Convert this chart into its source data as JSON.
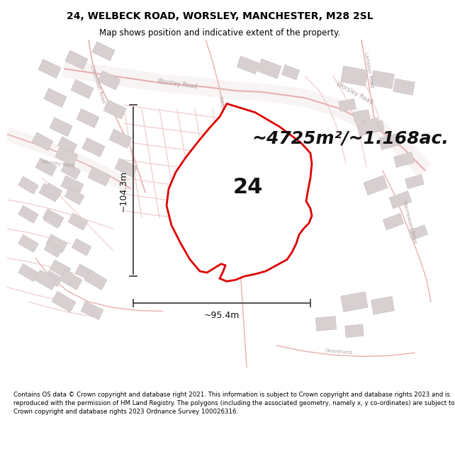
{
  "title": "24, WELBECK ROAD, WORSLEY, MANCHESTER, M28 2SL",
  "subtitle": "Map shows position and indicative extent of the property.",
  "area_text": "~4725m²/~1.168ac.",
  "label_number": "24",
  "dim_horizontal": "~95.4m",
  "dim_vertical": "~104.3m",
  "footer": "Contains OS data © Crown copyright and database right 2021. This information is subject to Crown copyright and database rights 2023 and is reproduced with the permission of HM Land Registry. The polygons (including the associated geometry, namely x, y co-ordinates) are subject to Crown copyright and database rights 2023 Ordnance Survey 100026316.",
  "bg_color": "#ffffff",
  "map_bg": "#f5f2f2",
  "road_fill": "#f9f0f0",
  "road_edge": "#e8b0b0",
  "road_edge_light": "#f0c8c8",
  "bld_fill": "#d8d0d0",
  "bld_edge": "#c8c0c0",
  "plot_fill": "#ffffff",
  "plot_edge": "#dd0000",
  "dim_line_color": "#444444",
  "text_color_map": "#aaaaaa",
  "title_fontsize": 10,
  "subtitle_fontsize": 8.5,
  "area_fontsize": 18,
  "label_fontsize": 22,
  "dim_fontsize": 9,
  "road_label_fontsize": 5,
  "footer_fontsize": 6.2
}
